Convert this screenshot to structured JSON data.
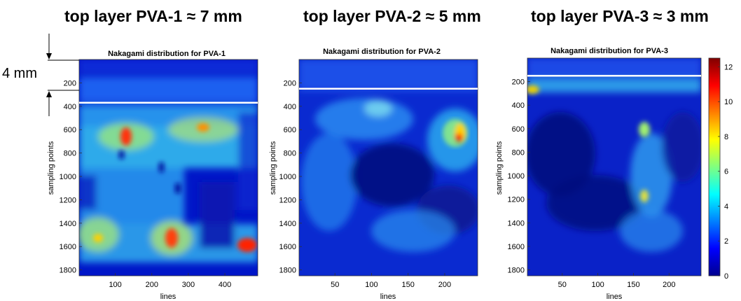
{
  "headings": [
    "top layer PVA-1  ≈ 7 mm",
    "top layer PVA-2 ≈ 5 mm",
    "top layer PVA-3 ≈ 3 mm"
  ],
  "annotation": {
    "label": "4 mm"
  },
  "chart_data": [
    {
      "type": "heatmap",
      "title": "Nakagami distribution for PVA-1",
      "xlabel": "lines",
      "ylabel": "sampling points",
      "xlim": [
        1,
        490
      ],
      "ylim": [
        0,
        1850
      ],
      "y_reversed": true,
      "xticks": [
        100,
        200,
        300,
        400
      ],
      "yticks": [
        200,
        400,
        600,
        800,
        1000,
        1200,
        1400,
        1600,
        1800
      ],
      "top_layer_boundary_y": 370,
      "hotspots": [
        [
          130,
          650,
          11
        ],
        [
          250,
          1550,
          10
        ],
        [
          440,
          1570,
          11
        ],
        [
          300,
          620,
          7
        ],
        [
          60,
          1550,
          7
        ]
      ]
    },
    {
      "type": "heatmap",
      "title": "Nakagami distribution for PVA-2",
      "xlabel": "lines",
      "ylabel": "sampling points",
      "xlim": [
        1,
        245
      ],
      "ylim": [
        0,
        1850
      ],
      "y_reversed": true,
      "xticks": [
        50,
        100,
        150,
        200
      ],
      "yticks": [
        200,
        400,
        600,
        800,
        1000,
        1200,
        1400,
        1600,
        1800
      ],
      "top_layer_boundary_y": 250,
      "hotspots": [
        [
          200,
          680,
          12
        ],
        [
          205,
          560,
          8
        ],
        [
          100,
          350,
          5
        ]
      ]
    },
    {
      "type": "heatmap",
      "title": "Nakagami distribution for PVA-3",
      "xlabel": "lines",
      "ylabel": "sampling points",
      "xlim": [
        1,
        245
      ],
      "ylim": [
        0,
        1850
      ],
      "y_reversed": true,
      "xticks": [
        50,
        100,
        150,
        200
      ],
      "yticks": [
        200,
        400,
        600,
        800,
        1000,
        1200,
        1400,
        1600,
        1800
      ],
      "top_layer_boundary_y": 150,
      "hotspots": [
        [
          10,
          280,
          8
        ],
        [
          160,
          660,
          7
        ],
        [
          160,
          1230,
          8
        ]
      ]
    }
  ],
  "colorbar": {
    "colormap": "jet",
    "min": 0,
    "max": 12.5,
    "ticks": [
      0,
      2,
      4,
      6,
      8,
      10,
      12
    ]
  },
  "colors": {
    "boundary_line": "#ffffff",
    "annotation": "#000000"
  }
}
